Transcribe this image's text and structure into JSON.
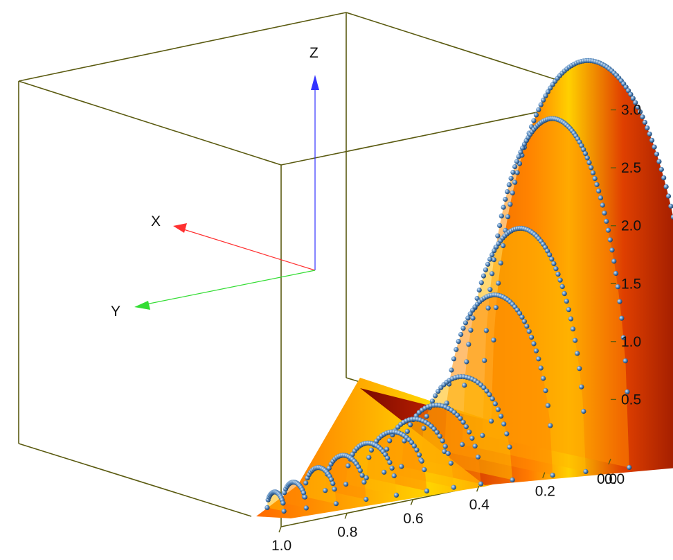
{
  "chart_data": {
    "type": "surface3d",
    "title": "",
    "ztick_labels": [
      "3.0",
      "2.5",
      "2.0",
      "1.5",
      "1.0",
      "0.5"
    ],
    "ztick_values": [
      3.0,
      2.5,
      2.0,
      1.5,
      1.0,
      0.5
    ],
    "xtick_labels": [
      "1.0",
      "0.8",
      "0.6",
      "0.4",
      "0.2",
      "0.0"
    ],
    "xtick_values": [
      1.0,
      0.8,
      0.6,
      0.4,
      0.2,
      0.0
    ],
    "corner_label": "0.0",
    "zlim": [
      0,
      3.35
    ],
    "xlim": [
      0,
      1.0
    ],
    "triad": {
      "x_label": "X",
      "y_label": "Y",
      "z_label": "Z",
      "x_color": "#ff3030",
      "y_color": "#33dd33",
      "z_color": "#3333ff"
    },
    "curves": [
      {
        "x": 0.0,
        "peak": 3.3
      },
      {
        "x": 0.12,
        "peak": 2.87
      },
      {
        "x": 0.22,
        "peak": 1.98
      },
      {
        "x": 0.3,
        "peak": 1.45
      },
      {
        "x": 0.4,
        "peak": 0.8
      },
      {
        "x": 0.48,
        "peak": 0.6
      },
      {
        "x": 0.55,
        "peak": 0.52
      },
      {
        "x": 0.62,
        "peak": 0.45
      },
      {
        "x": 0.7,
        "peak": 0.4
      },
      {
        "x": 0.78,
        "peak": 0.34
      },
      {
        "x": 0.86,
        "peak": 0.28
      },
      {
        "x": 0.94,
        "peak": 0.2
      },
      {
        "x": 1.0,
        "peak": 0.15
      }
    ],
    "colors": {
      "box": "#5a5a10",
      "surface_dark": "#7a0a00",
      "surface_mid": "#e03a00",
      "surface_light": "#ffe000",
      "marker": "#3a6ea5"
    },
    "grid": false,
    "legend": "none"
  }
}
